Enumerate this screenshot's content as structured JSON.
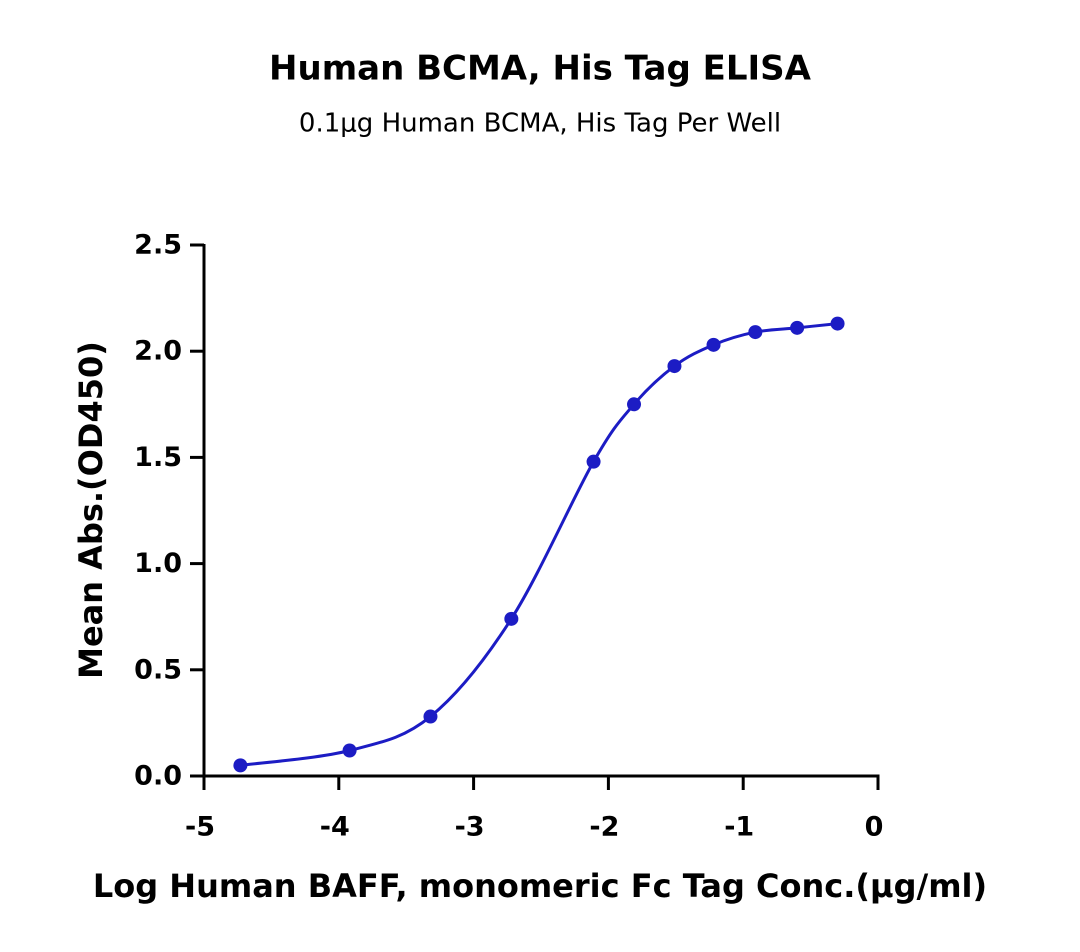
{
  "chart_data": {
    "type": "line",
    "title": "Human BCMA, His Tag ELISA",
    "subtitle": "0.1μg Human BCMA, His Tag Per Well",
    "x_label": "Log Human BAFF, monomeric Fc Tag Conc.(μg/ml)",
    "y_label": "Mean Abs.(OD450)",
    "x": [
      -4.73,
      -3.92,
      -3.32,
      -2.72,
      -2.11,
      -1.81,
      -1.51,
      -1.22,
      -0.91,
      -0.6,
      -0.3
    ],
    "series": [
      {
        "color": "#1c1cc4",
        "values": [
          0.05,
          0.12,
          0.28,
          0.74,
          1.48,
          1.75,
          1.93,
          2.03,
          2.09,
          2.11,
          2.13
        ]
      }
    ],
    "xlim": [
      -5,
      0
    ],
    "xticks": [
      -5,
      -4,
      -3,
      -2,
      -1,
      0
    ],
    "ylim": [
      0,
      2.5
    ],
    "yticks": [
      {
        "value": 0,
        "label": "0.0"
      },
      {
        "value": 0.5,
        "label": "0.5"
      },
      {
        "value": 1,
        "label": "1.0"
      },
      {
        "value": 1.5,
        "label": "1.5"
      },
      {
        "value": 2,
        "label": "2.0"
      },
      {
        "value": 2.5,
        "label": "2.5"
      }
    ]
  }
}
